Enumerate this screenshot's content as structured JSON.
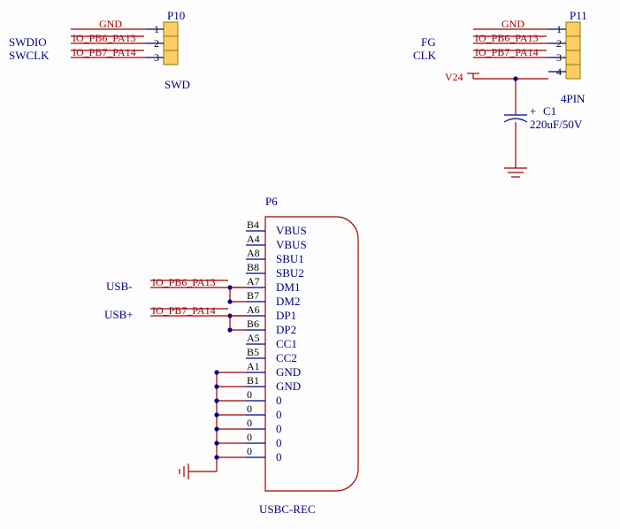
{
  "colors": {
    "wire": "#a00000",
    "wire_blue": "#00008b",
    "pin_fill": "#ffcc66",
    "pin_stroke": "#808000",
    "refdes": "#000080",
    "netlabel": "#a00000",
    "siglabel": "#000080",
    "pin_number": "#000000",
    "background": "#fdfdfd"
  },
  "fonts": {
    "family": "Times New Roman",
    "refdes_size": 13,
    "label_size": 12,
    "pin_size": 12
  },
  "p10": {
    "ref": "P10",
    "name": "SWD",
    "pins": [
      "1",
      "2",
      "3"
    ],
    "nets": [
      "GND",
      "IO_PB6_PA13",
      "IO_PB7_PA14"
    ],
    "signals": [
      "",
      "SWDIO",
      "SWCLK"
    ]
  },
  "p11": {
    "ref": "P11",
    "name": "4PIN",
    "pins": [
      "1",
      "2",
      "3",
      "4"
    ],
    "nets": [
      "GND",
      "IO_PB6_PA13",
      "IO_PB7_PA14",
      ""
    ],
    "signals": [
      "",
      "FG",
      "CLK",
      ""
    ],
    "v24": "V24"
  },
  "c1": {
    "ref": "C1",
    "value": "220uF/50V",
    "plus": "+"
  },
  "p6": {
    "ref": "P6",
    "name": "USBC-REC",
    "pins": [
      "B4",
      "A4",
      "A8",
      "B8",
      "A7",
      "B7",
      "A6",
      "B6",
      "A5",
      "B5",
      "A1",
      "B1",
      "0",
      "0",
      "0",
      "0",
      "0"
    ],
    "labels": [
      "VBUS",
      "VBUS",
      "SBU1",
      "SBU2",
      "DM1",
      "DM2",
      "DP1",
      "DP2",
      "CC1",
      "CC2",
      "GND",
      "GND",
      "0",
      "0",
      "0",
      "0",
      "0"
    ],
    "usb_minus": "USB-",
    "usb_plus": "USB+",
    "net_dm": "IO_PB6_PA13",
    "net_dp": "IO_PB7_PA14"
  }
}
